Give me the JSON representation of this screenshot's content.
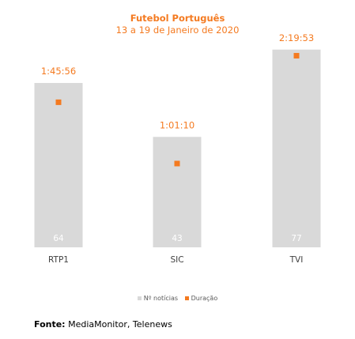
{
  "chart_data": {
    "type": "bar",
    "title": "Futebol Português",
    "subtitle": "13 a 19 de Janeiro de 2020",
    "categories": [
      "RTP1",
      "SIC",
      "TVI"
    ],
    "series": [
      {
        "name": "Nº notícias",
        "type": "bar",
        "color": "#d9d9d9",
        "values": [
          64,
          43,
          77
        ],
        "labels": [
          "64",
          "43",
          "77"
        ]
      },
      {
        "name": "Duração",
        "type": "marker",
        "color": "#f47a20",
        "values": [
          "1:45:56",
          "1:01:10",
          "2:19:53"
        ],
        "seconds": [
          6356,
          3670,
          8393
        ],
        "labels": [
          "1:45:56",
          "1:01:10",
          "2:19:53"
        ]
      }
    ],
    "ylim_bars": [
      0,
      80
    ],
    "ylim_duration": [
      0,
      9000
    ],
    "legend": "bottom"
  },
  "source": {
    "label": "Fonte:",
    "text": "MediaMonitor, Telenews"
  }
}
